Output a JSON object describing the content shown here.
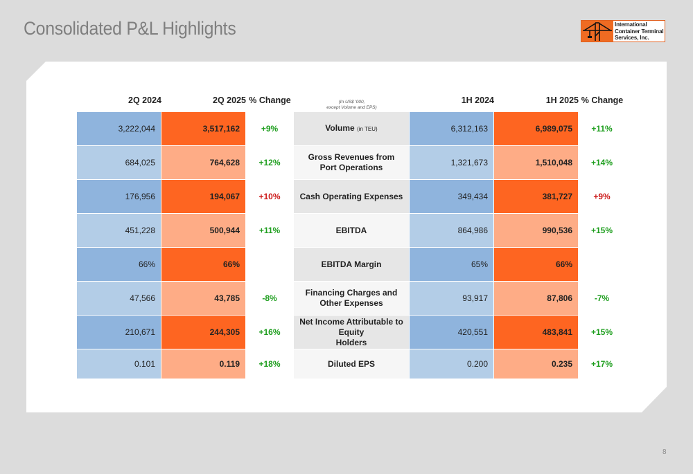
{
  "title": "Consolidated P&L Highlights",
  "logo": {
    "company_line1": "International",
    "company_line2": "Container Terminal",
    "company_line3": "Services, Inc."
  },
  "colors": {
    "blue_dark": "#8fb4dd",
    "blue_light": "#b3cde7",
    "orange_dark": "#fe6521",
    "orange_light": "#feac86",
    "positive": "#1e9e1e",
    "negative": "#cc1a1a"
  },
  "table": {
    "headers": {
      "q_prev": "2Q 2024",
      "q_curr": "2Q 2025",
      "q_change": "% Change",
      "unit_line1": "(In US$ '000,",
      "unit_line2": "except Volume and EPS)",
      "h_prev": "1H 2024",
      "h_curr": "1H 2025",
      "h_change": "% Change"
    },
    "rows": [
      {
        "q_prev": "3,222,044",
        "q_curr": "3,517,162",
        "q_change": "+9%",
        "label1": "Volume",
        "label_suffix": "(in TEU)",
        "label2": "",
        "h_prev": "6,312,163",
        "h_curr": "6,989,075",
        "h_change": "+11%"
      },
      {
        "q_prev": "684,025",
        "q_curr": "764,628",
        "q_change": "+12%",
        "label1": "Gross Revenues from",
        "label_suffix": "",
        "label2": "Port Operations",
        "h_prev": "1,321,673",
        "h_curr": "1,510,048",
        "h_change": "+14%"
      },
      {
        "q_prev": "176,956",
        "q_curr": "194,067",
        "q_change": "+10%",
        "label1": "Cash Operating Expenses",
        "label_suffix": "",
        "label2": "",
        "h_prev": "349,434",
        "h_curr": "381,727",
        "h_change": "+9%"
      },
      {
        "q_prev": "451,228",
        "q_curr": "500,944",
        "q_change": "+11%",
        "label1": "EBITDA",
        "label_suffix": "",
        "label2": "",
        "h_prev": "864,986",
        "h_curr": "990,536",
        "h_change": "+15%"
      },
      {
        "q_prev": "66%",
        "q_curr": "66%",
        "q_change": "",
        "label1": "EBITDA Margin",
        "label_suffix": "",
        "label2": "",
        "h_prev": "65%",
        "h_curr": "66%",
        "h_change": ""
      },
      {
        "q_prev": "47,566",
        "q_curr": "43,785",
        "q_change": "-8%",
        "label1": "Financing Charges and",
        "label_suffix": "",
        "label2": "Other Expenses",
        "h_prev": "93,917",
        "h_curr": "87,806",
        "h_change": "-7%"
      },
      {
        "q_prev": "210,671",
        "q_curr": "244,305",
        "q_change": "+16%",
        "label1": "Net Income Attributable to Equity",
        "label_suffix": "",
        "label2": "Holders",
        "h_prev": "420,551",
        "h_curr": "483,841",
        "h_change": "+15%"
      },
      {
        "q_prev": "0.101",
        "q_curr": "0.119",
        "q_change": "+18%",
        "label1": "Diluted EPS",
        "label_suffix": "",
        "label2": "",
        "h_prev": "0.200",
        "h_curr": "0.235",
        "h_change": "+17%"
      }
    ]
  },
  "page_number": "8"
}
